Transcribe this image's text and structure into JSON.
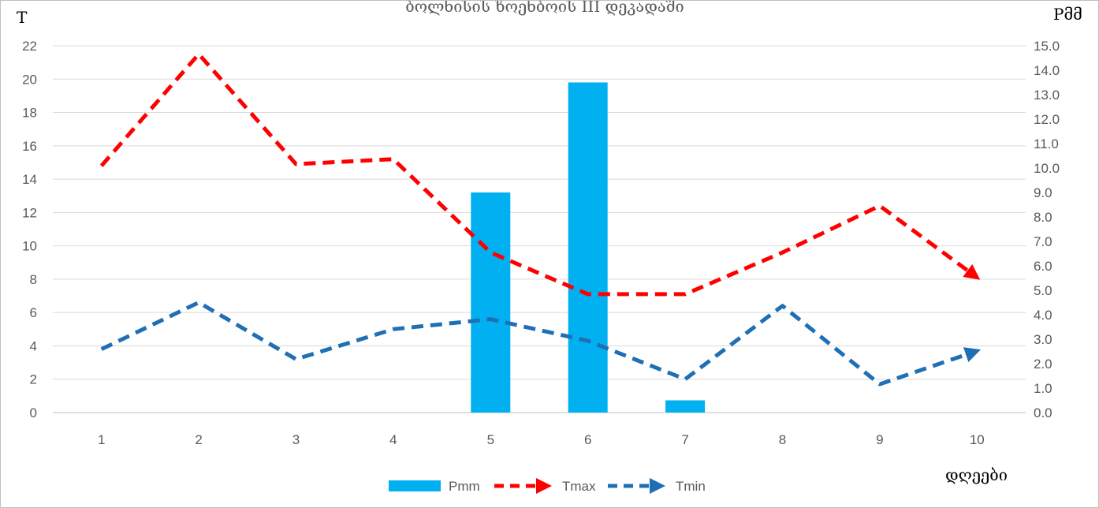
{
  "chart_data": {
    "type": "bar",
    "title": "ბოლნისის ხოენბოის III დეკადაში",
    "xlabel": "დღეები",
    "ylabel_left": "T",
    "ylabel_right": "Pმმ",
    "categories": [
      "1",
      "2",
      "3",
      "4",
      "5",
      "6",
      "7",
      "8",
      "9",
      "10"
    ],
    "ylim_left": [
      0,
      22
    ],
    "yticks_left": [
      "0",
      "2",
      "4",
      "6",
      "8",
      "10",
      "12",
      "14",
      "16",
      "18",
      "20",
      "22"
    ],
    "ylim_right": [
      0,
      15
    ],
    "yticks_right": [
      "0.0",
      "1.0",
      "2.0",
      "3.0",
      "4.0",
      "5.0",
      "6.0",
      "7.0",
      "8.0",
      "9.0",
      "10.0",
      "11.0",
      "12.0",
      "13.0",
      "14.0",
      "15.0"
    ],
    "grid": true,
    "legend_position": "bottom",
    "series": [
      {
        "name": "Pmm",
        "type": "bar",
        "axis": "right",
        "color": "#00b0f0",
        "values": [
          0,
          0,
          0,
          0,
          9.0,
          13.5,
          0.5,
          0,
          0,
          0
        ]
      },
      {
        "name": "Tmax",
        "type": "line",
        "axis": "left",
        "style": "dashed-arrow",
        "color": "#ff0000",
        "values": [
          14.8,
          21.5,
          14.9,
          15.2,
          9.6,
          7.1,
          7.1,
          9.6,
          12.4,
          8.1
        ]
      },
      {
        "name": "Tmin",
        "type": "line",
        "axis": "left",
        "style": "dashed-arrow",
        "color": "#1f6fb5",
        "values": [
          3.8,
          6.6,
          3.2,
          5.0,
          5.6,
          4.3,
          2.0,
          6.4,
          1.7,
          3.7
        ]
      }
    ]
  }
}
